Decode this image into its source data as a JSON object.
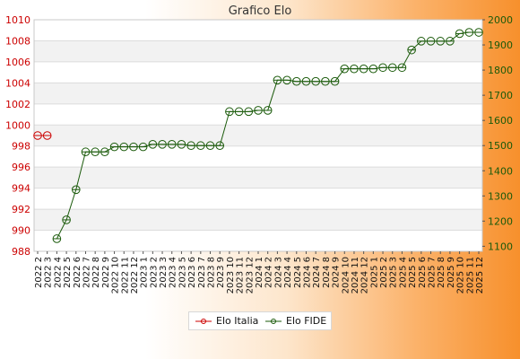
{
  "chart_data": {
    "type": "line",
    "title": "Grafico Elo",
    "categories": [
      "2022 2",
      "2022 3",
      "2022 4",
      "2022 5",
      "2022 6",
      "2022 7",
      "2022 8",
      "2022 9",
      "2022 10",
      "2022 11",
      "2022 12",
      "2023 1",
      "2023 2",
      "2023 3",
      "2023 4",
      "2023 5",
      "2023 6",
      "2023 7",
      "2023 8",
      "2023 9",
      "2023 10",
      "2023 11",
      "2023 12",
      "2024 1",
      "2024 2",
      "2024 3",
      "2024 4",
      "2024 5",
      "2024 6",
      "2024 7",
      "2024 8",
      "2024 9",
      "2024 10",
      "2024 11",
      "2024 12",
      "2025 1",
      "2025 2",
      "2025 3",
      "2025 4",
      "2025 5",
      "2025 6",
      "2025 7",
      "2025 8",
      "2025 9",
      "2025 10",
      "2025 11",
      "2025 12"
    ],
    "y_left": {
      "ticks": [
        988,
        990,
        992,
        994,
        996,
        998,
        1000,
        1002,
        1004,
        1006,
        1008,
        1010
      ],
      "range": [
        988,
        1010
      ],
      "color": "#cc0000"
    },
    "y_right": {
      "ticks": [
        1100,
        1200,
        1300,
        1400,
        1500,
        1600,
        1700,
        1800,
        1900,
        2000
      ],
      "range": [
        1080,
        2000
      ],
      "color": "#1a5a0a"
    },
    "grid": true,
    "legend_position": "bottom",
    "series": [
      {
        "name": "Elo Italia",
        "axis": "left",
        "color": "#cc0000",
        "values": [
          999,
          999,
          null,
          null,
          null,
          null,
          null,
          null,
          null,
          null,
          null,
          null,
          null,
          null,
          null,
          null,
          null,
          null,
          null,
          null,
          null,
          null,
          null,
          null,
          null,
          null,
          null,
          null,
          null,
          null,
          null,
          null,
          null,
          null,
          null,
          null,
          null,
          null,
          null,
          null,
          null,
          null,
          null,
          null,
          null,
          null,
          null
        ]
      },
      {
        "name": "Elo FIDE",
        "axis": "right",
        "color": "#1a5a0a",
        "values": [
          null,
          null,
          1130,
          1205,
          1325,
          1475,
          1475,
          1475,
          1495,
          1495,
          1495,
          1495,
          1505,
          1505,
          1505,
          1505,
          1500,
          1500,
          1500,
          1500,
          1635,
          1635,
          1635,
          1640,
          1640,
          1760,
          1760,
          1755,
          1755,
          1755,
          1755,
          1755,
          1805,
          1805,
          1805,
          1805,
          1810,
          1810,
          1810,
          1880,
          1915,
          1915,
          1915,
          1915,
          1945,
          1950,
          1950
        ]
      }
    ]
  }
}
